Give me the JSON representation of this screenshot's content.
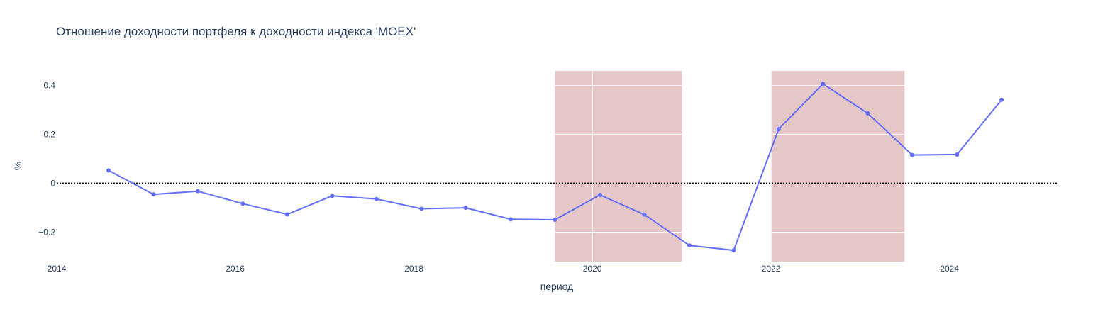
{
  "chart_data": {
    "type": "line",
    "title": "Отношение доходности портфеля к доходности индекса 'MOEX'",
    "xlabel": "период",
    "ylabel": "%",
    "xlim": [
      "2014-01-01",
      "2025-03-15"
    ],
    "ylim": [
      -0.32,
      0.46
    ],
    "x_ticks": [
      {
        "date": "2014-01-01",
        "label": "2014"
      },
      {
        "date": "2016-01-01",
        "label": "2016"
      },
      {
        "date": "2018-01-01",
        "label": "2018"
      },
      {
        "date": "2020-01-01",
        "label": "2020"
      },
      {
        "date": "2022-01-01",
        "label": "2022"
      },
      {
        "date": "2024-01-01",
        "label": "2024"
      }
    ],
    "y_ticks": [
      {
        "value": 0.4,
        "label": "0.4"
      },
      {
        "value": 0.2,
        "label": "0.2"
      },
      {
        "value": 0,
        "label": "0"
      },
      {
        "value": -0.2,
        "label": "−0.2"
      }
    ],
    "grid": true,
    "reference_line": {
      "y": 0,
      "style": "dotted",
      "color": "#000000"
    },
    "shaded_regions": [
      {
        "x0": "2019-08-01",
        "x1": "2021-01-01",
        "color": "#e6c7c8"
      },
      {
        "x0": "2022-01-01",
        "x1": "2023-07-01",
        "color": "#e6c7c8"
      }
    ],
    "series": [
      {
        "color": "#636efa",
        "x": [
          "2014-08-01",
          "2015-02-01",
          "2015-08-01",
          "2016-02-01",
          "2016-08-01",
          "2017-02-01",
          "2017-08-01",
          "2018-02-01",
          "2018-08-01",
          "2019-02-01",
          "2019-08-01",
          "2020-02-01",
          "2020-08-01",
          "2021-02-01",
          "2021-08-01",
          "2022-02-01",
          "2022-08-01",
          "2023-02-01",
          "2023-08-01",
          "2024-02-01",
          "2024-08-01"
        ],
        "y": [
          0.053,
          -0.045,
          -0.032,
          -0.083,
          -0.127,
          -0.051,
          -0.064,
          -0.104,
          -0.1,
          -0.147,
          -0.149,
          -0.047,
          -0.128,
          -0.254,
          -0.274,
          0.222,
          0.407,
          0.286,
          0.116,
          0.118,
          0.342
        ]
      }
    ]
  }
}
